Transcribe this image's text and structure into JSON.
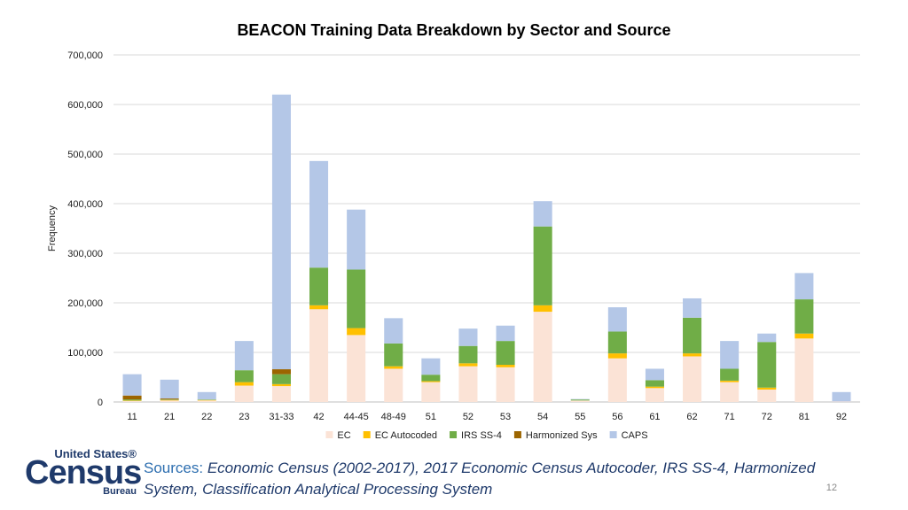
{
  "chart_data": {
    "type": "bar",
    "stacked": true,
    "title": "BEACON Training Data Breakdown by Sector and Source",
    "ylabel": "Frequency",
    "xlabel": "",
    "ylim": [
      0,
      700000
    ],
    "yticks": [
      "0",
      "100,000",
      "200,000",
      "300,000",
      "400,000",
      "500,000",
      "600,000",
      "700,000"
    ],
    "grid": true,
    "legend_position": "bottom",
    "categories": [
      "11",
      "21",
      "22",
      "23",
      "31-33",
      "42",
      "44-45",
      "48-49",
      "51",
      "52",
      "53",
      "54",
      "55",
      "56",
      "61",
      "62",
      "71",
      "72",
      "81",
      "92"
    ],
    "series": [
      {
        "name": "EC",
        "color": "#fbe3d6",
        "values": [
          2000,
          3000,
          3000,
          33000,
          32000,
          187000,
          135000,
          67000,
          40000,
          72000,
          70000,
          182000,
          3000,
          88000,
          28000,
          92000,
          40000,
          25000,
          128000,
          1000
        ]
      },
      {
        "name": "EC Autocoded",
        "color": "#ffc000",
        "values": [
          1000,
          1000,
          1000,
          7000,
          4000,
          8000,
          14000,
          5000,
          2000,
          6000,
          5000,
          13000,
          0,
          10000,
          3000,
          6000,
          3000,
          4000,
          10000,
          0
        ]
      },
      {
        "name": "IRS SS-4",
        "color": "#70ad47",
        "values": [
          2000,
          1000,
          1000,
          24000,
          20000,
          76000,
          118000,
          46000,
          13000,
          35000,
          48000,
          159000,
          2000,
          44000,
          13000,
          72000,
          24000,
          92000,
          69000,
          0
        ]
      },
      {
        "name": "Harmonized Sys",
        "color": "#9c6500",
        "values": [
          8000,
          2000,
          0,
          0,
          10000,
          0,
          0,
          0,
          0,
          0,
          0,
          0,
          0,
          0,
          0,
          0,
          0,
          0,
          0,
          0
        ]
      },
      {
        "name": "CAPS",
        "color": "#b4c7e7",
        "values": [
          43000,
          38000,
          15000,
          59000,
          554000,
          215000,
          121000,
          51000,
          33000,
          35000,
          31000,
          51000,
          1000,
          49000,
          23000,
          39000,
          56000,
          17000,
          53000,
          19000
        ]
      }
    ]
  },
  "footer": {
    "logo_line1": "United States®",
    "logo_line2": "Census",
    "logo_line3": "Bureau",
    "sources_label": "Sources:",
    "sources_text": "Economic Census (2002-2017), 2017 Economic Census Autocoder, IRS SS-4, Harmonized System, Classification Analytical Processing System",
    "page_number": "12"
  }
}
